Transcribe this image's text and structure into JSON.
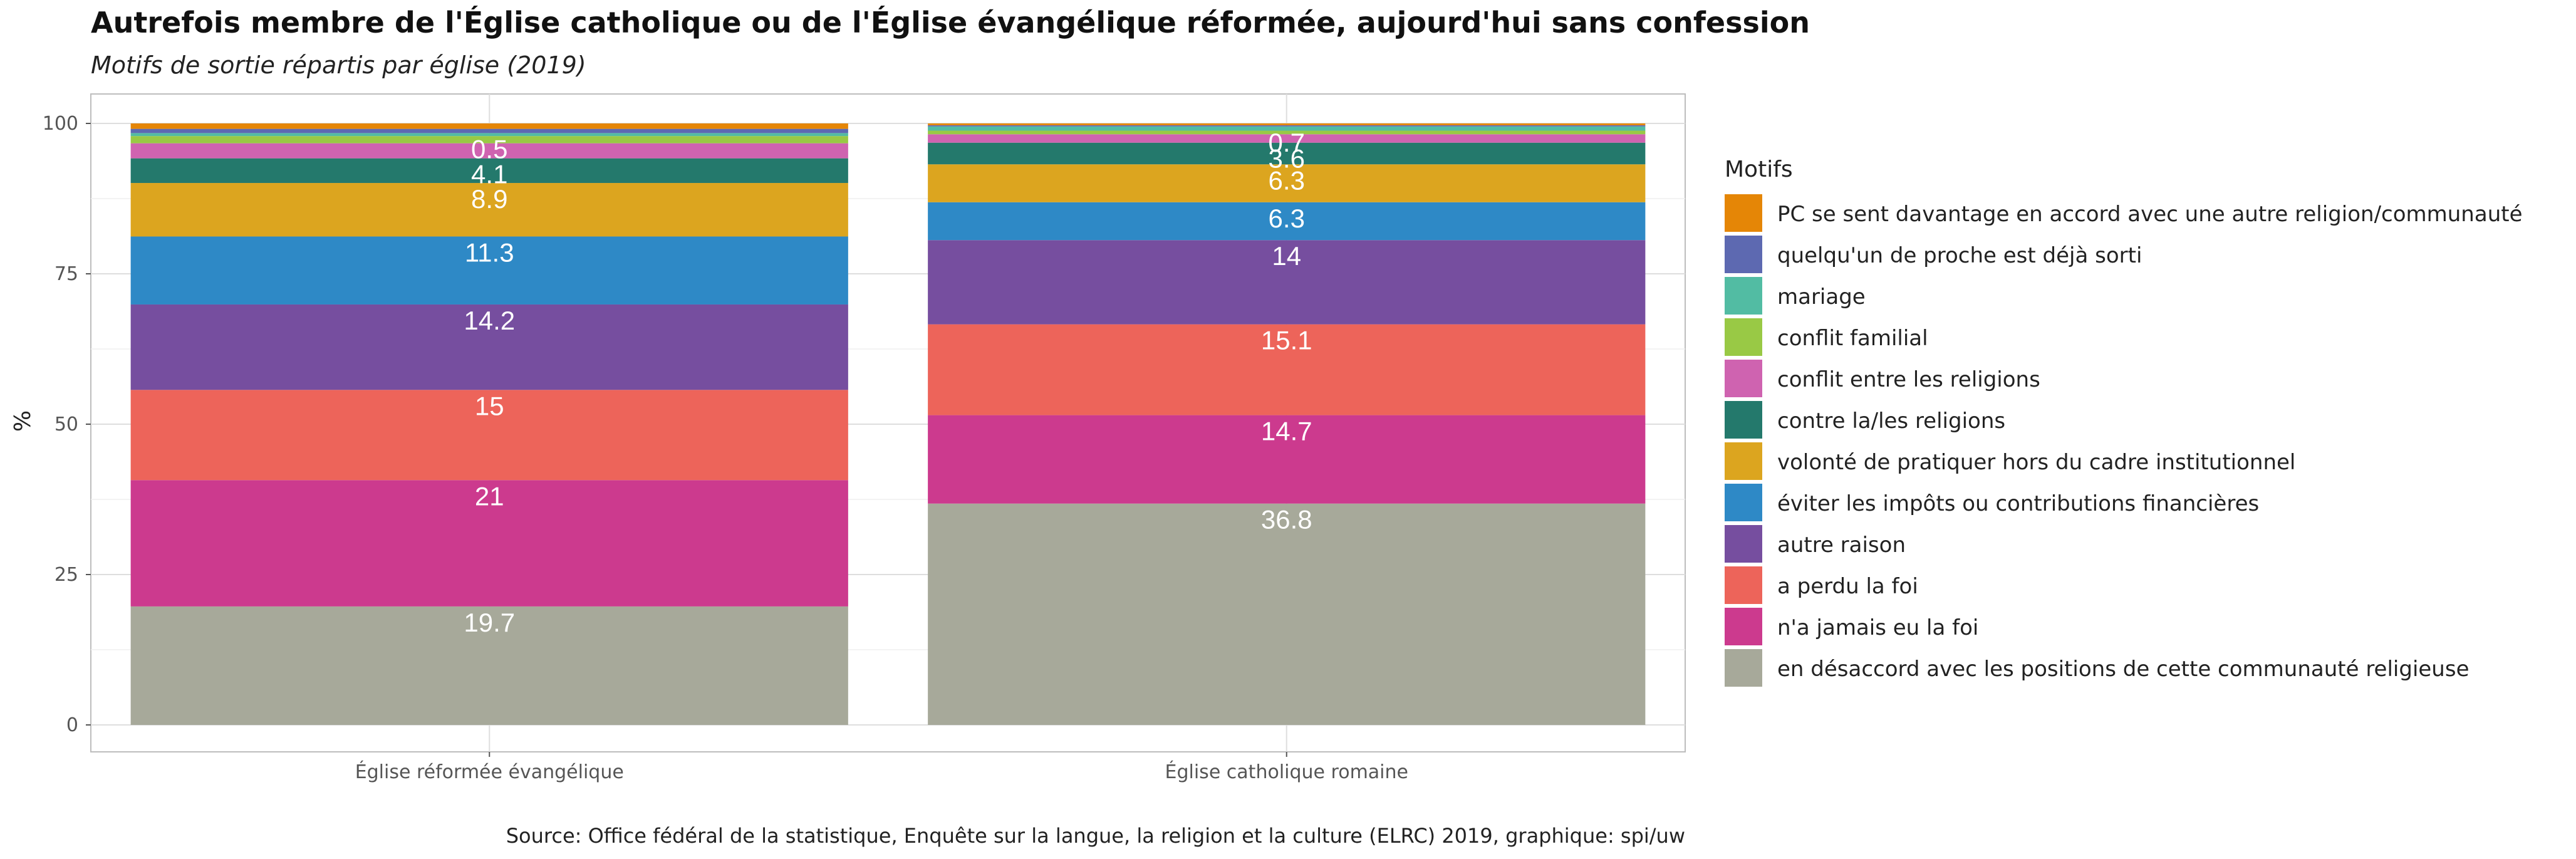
{
  "chart_data": {
    "type": "bar",
    "stacked": true,
    "title": "Autrefois membre de l'Église catholique ou de l'Église évangélique réformée, aujourd'hui sans confession",
    "subtitle": "Motifs de sortie répartis par église (2019)",
    "xlabel": "",
    "ylabel": "%",
    "ylim": [
      0,
      100
    ],
    "yticks": [
      0,
      25,
      50,
      75,
      100
    ],
    "grid": true,
    "legend_title": "Motifs",
    "legend_position": "right",
    "caption": "Source: Office fédéral de la statistique, Enquête sur la langue, la religion et la culture (ELRC) 2019, graphique: spi/uw",
    "categories": [
      "Église réformée évangélique",
      "Église catholique romaine"
    ],
    "series": [
      {
        "name": "en désaccord avec les positions de cette communauté religieuse",
        "color": "#a7a99a",
        "values": [
          19.7,
          36.8
        ]
      },
      {
        "name": "n'a jamais eu la foi",
        "color": "#cc3a8e",
        "values": [
          21,
          14.7
        ]
      },
      {
        "name": "a perdu la foi",
        "color": "#ed645a",
        "values": [
          15,
          15.1
        ]
      },
      {
        "name": "autre raison",
        "color": "#764e9f",
        "values": [
          14.2,
          14
        ]
      },
      {
        "name": "éviter les impôts ou contributions financières",
        "color": "#2e89c6",
        "values": [
          11.3,
          6.3
        ]
      },
      {
        "name": "volonté de pratiquer hors du cadre institutionnel",
        "color": "#dca51f",
        "values": [
          8.9,
          6.3
        ]
      },
      {
        "name": "contre la/les religions",
        "color": "#24796c",
        "values": [
          4.1,
          3.6
        ]
      },
      {
        "name": "conflit entre les religions",
        "color": "#cf63b0",
        "values": [
          2.5,
          1.4
        ]
      },
      {
        "name": "conflit familial",
        "color": "#99c945",
        "values": [
          1.2,
          0.6
        ]
      },
      {
        "name": "mariage",
        "color": "#52bca3",
        "values": [
          0.5,
          0.7
        ]
      },
      {
        "name": "quelqu'un de proche est déjà sorti",
        "color": "#5d69b1",
        "values": [
          0.7,
          0.2
        ]
      },
      {
        "name": "PC se sent davantage en accord avec une autre religion/communauté",
        "color": "#e58606",
        "values": [
          0.9,
          0.3
        ]
      }
    ],
    "data_labels": [
      [
        "19.7",
        "21",
        "15",
        "14.2",
        "11.3",
        "8.9",
        "4.1",
        "",
        "",
        "0.5",
        "",
        ""
      ],
      [
        "36.8",
        "14.7",
        "15.1",
        "14",
        "6.3",
        "6.3",
        "3.6",
        "",
        "",
        "0.7",
        "",
        ""
      ]
    ]
  }
}
